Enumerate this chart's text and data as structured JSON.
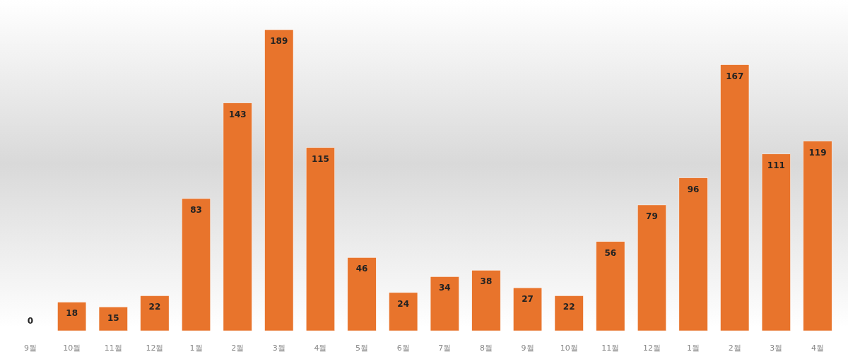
{
  "chart_data": {
    "type": "bar",
    "categories": [
      "9월",
      "10월",
      "11월",
      "12월",
      "1월",
      "2월",
      "3월",
      "4월",
      "5월",
      "6월",
      "7월",
      "8월",
      "9월",
      "10월",
      "11월",
      "12월",
      "1월",
      "2월",
      "3월",
      "4월"
    ],
    "values": [
      0,
      18,
      15,
      22,
      83,
      143,
      189,
      115,
      46,
      24,
      34,
      38,
      27,
      22,
      56,
      79,
      96,
      167,
      111,
      119
    ],
    "color": "#e8742c",
    "data_labels": true
  }
}
